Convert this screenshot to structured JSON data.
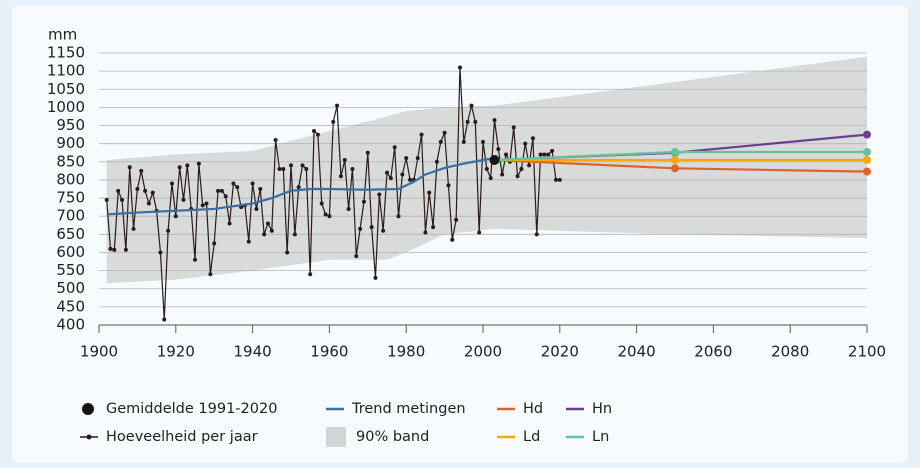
{
  "chart_data": {
    "type": "line",
    "y_label": "mm",
    "xlim": [
      1900,
      2100
    ],
    "xticks": [
      1900,
      1920,
      1940,
      1960,
      1980,
      2000,
      2020,
      2040,
      2060,
      2080,
      2100
    ],
    "ylim": [
      400,
      1150
    ],
    "yticks": [
      400,
      450,
      500,
      550,
      600,
      650,
      700,
      750,
      800,
      850,
      900,
      950,
      1000,
      1050,
      1100,
      1150
    ],
    "grid": true,
    "band": {
      "name": "90% band",
      "color": "#d4d4d4",
      "x": [
        1902,
        1920,
        1940,
        1960,
        1975,
        1980,
        1990,
        2003,
        2050,
        2100
      ],
      "upper": [
        855,
        870,
        880,
        935,
        975,
        990,
        1000,
        1005,
        1070,
        1140
      ],
      "lower": [
        515,
        525,
        550,
        580,
        580,
        600,
        650,
        665,
        650,
        640
      ]
    },
    "average": {
      "name": "Gemiddelde 1991-2020",
      "color": "#1a1111",
      "x": 2003,
      "value": 855
    },
    "series": [
      {
        "name": "Hoeveelheid per jaar",
        "color": "#2a1b1b",
        "markers": true,
        "x": [
          1902,
          1903,
          1904,
          1905,
          1906,
          1907,
          1908,
          1909,
          1910,
          1911,
          1912,
          1913,
          1914,
          1915,
          1916,
          1917,
          1918,
          1919,
          1920,
          1921,
          1922,
          1923,
          1924,
          1925,
          1926,
          1927,
          1928,
          1929,
          1930,
          1931,
          1932,
          1933,
          1934,
          1935,
          1936,
          1937,
          1938,
          1939,
          1940,
          1941,
          1942,
          1943,
          1944,
          1945,
          1946,
          1947,
          1948,
          1949,
          1950,
          1951,
          1952,
          1953,
          1954,
          1955,
          1956,
          1957,
          1958,
          1959,
          1960,
          1961,
          1962,
          1963,
          1964,
          1965,
          1966,
          1967,
          1968,
          1969,
          1970,
          1971,
          1972,
          1973,
          1974,
          1975,
          1976,
          1977,
          1978,
          1979,
          1980,
          1981,
          1982,
          1983,
          1984,
          1985,
          1986,
          1987,
          1988,
          1989,
          1990,
          1991,
          1992,
          1993,
          1994,
          1995,
          1996,
          1997,
          1998,
          1999,
          2000,
          2001,
          2002,
          2003,
          2004,
          2005,
          2006,
          2007,
          2008,
          2009,
          2010,
          2011,
          2012,
          2013,
          2014,
          2015,
          2016,
          2017,
          2018,
          2019,
          2020
        ],
        "values": [
          745,
          610,
          607,
          770,
          745,
          607,
          835,
          665,
          775,
          825,
          770,
          735,
          765,
          715,
          600,
          415,
          660,
          790,
          700,
          835,
          745,
          840,
          720,
          580,
          845,
          730,
          735,
          540,
          625,
          770,
          770,
          755,
          680,
          790,
          780,
          725,
          730,
          630,
          790,
          720,
          775,
          650,
          680,
          660,
          910,
          830,
          830,
          600,
          840,
          650,
          780,
          840,
          830,
          540,
          935,
          925,
          735,
          705,
          700,
          960,
          1005,
          810,
          855,
          720,
          830,
          590,
          665,
          740,
          875,
          670,
          530,
          760,
          660,
          820,
          805,
          890,
          700,
          815,
          860,
          800,
          800,
          860,
          925,
          655,
          765,
          670,
          850,
          905,
          930,
          785,
          635,
          690,
          1110,
          905,
          960,
          1005,
          960,
          655,
          905,
          830,
          805,
          965,
          885,
          815,
          870,
          850,
          945,
          810,
          830,
          900,
          840,
          915,
          650,
          870,
          870,
          870,
          880,
          800,
          800
        ]
      },
      {
        "name": "Trend metingen",
        "color": "#3a6ea5",
        "markers": false,
        "x": [
          1902,
          1910,
          1920,
          1930,
          1940,
          1945,
          1950,
          1955,
          1960,
          1970,
          1978,
          1982,
          1985,
          1990,
          1995,
          2000,
          2003
        ],
        "values": [
          705,
          710,
          715,
          720,
          735,
          750,
          770,
          775,
          775,
          773,
          775,
          795,
          815,
          833,
          845,
          855,
          860
        ]
      },
      {
        "name": "Hd",
        "color": "#e0622a",
        "markers": true,
        "x": [
          2003,
          2050,
          2100
        ],
        "values": [
          855,
          832,
          823
        ]
      },
      {
        "name": "Hn",
        "color": "#6b3f8f",
        "markers": true,
        "x": [
          2003,
          2050,
          2100
        ],
        "values": [
          855,
          875,
          925
        ]
      },
      {
        "name": "Ld",
        "color": "#f5a800",
        "markers": true,
        "x": [
          2003,
          2050,
          2100
        ],
        "values": [
          855,
          855,
          855
        ]
      },
      {
        "name": "Ln",
        "color": "#62c3a0",
        "markers": true,
        "x": [
          2003,
          2050,
          2100
        ],
        "values": [
          855,
          877,
          877
        ]
      }
    ]
  }
}
